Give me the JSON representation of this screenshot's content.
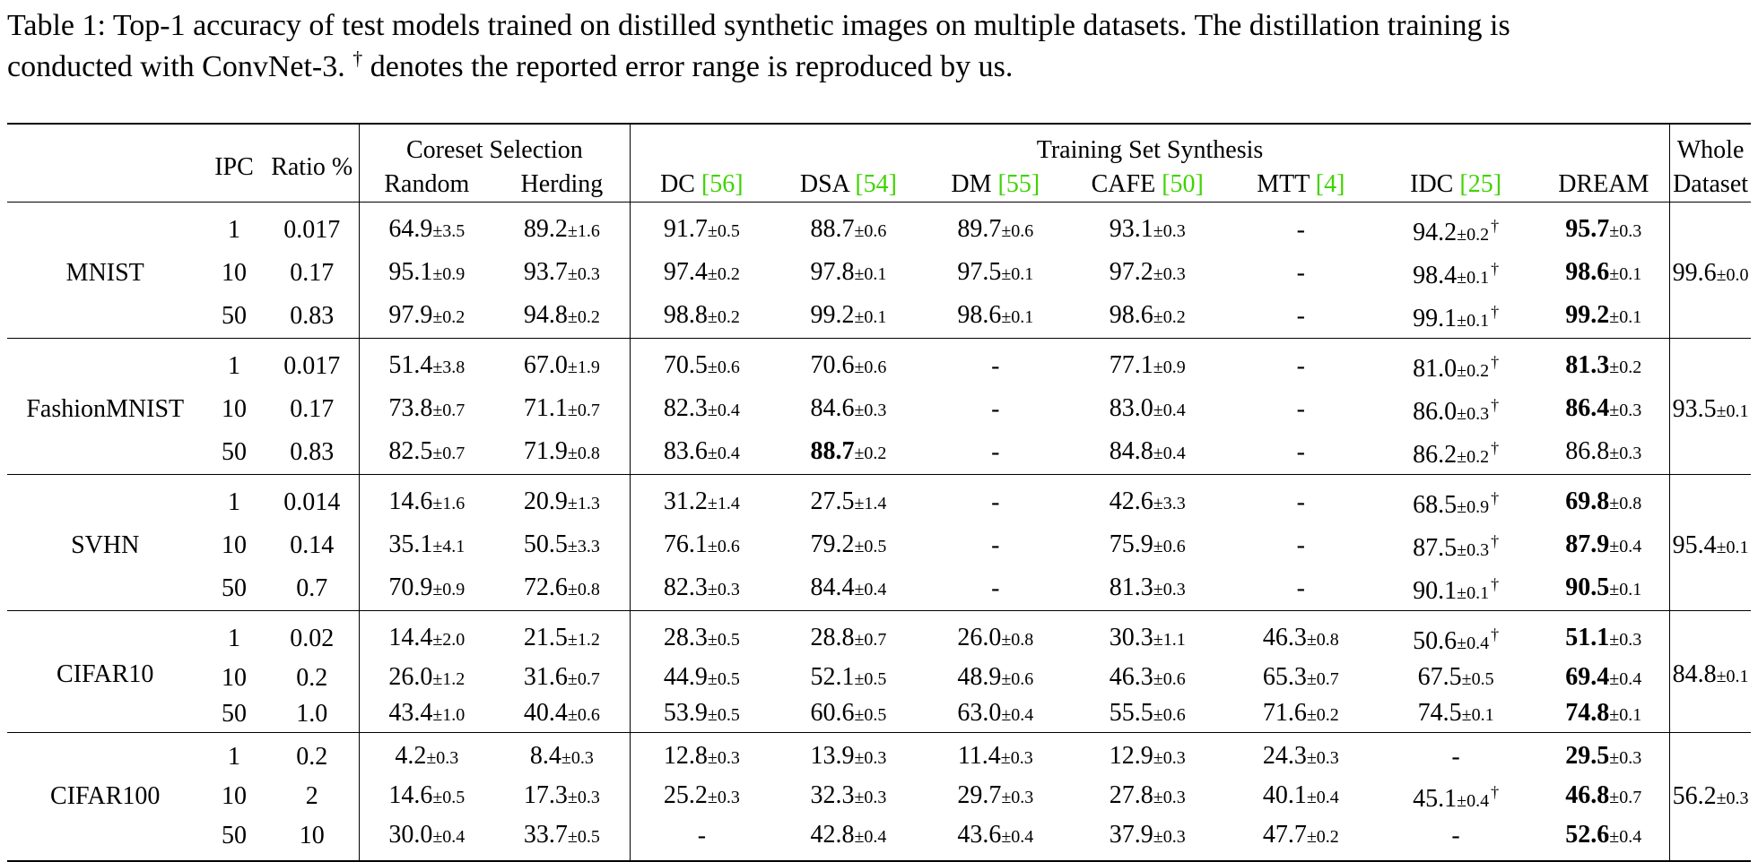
{
  "caption": {
    "line1": "Table 1: Top-1 accuracy of test models trained on distilled synthetic images on multiple datasets. The distillation training is",
    "line2_a": "conducted with ConvNet-3. ",
    "dagger": "†",
    "line2_b": " denotes the reported error range is reproduced by us."
  },
  "header": {
    "ipc": "IPC",
    "ratio": "Ratio %",
    "coreset_group": "Coreset Selection",
    "synthesis_group": "Training Set Synthesis",
    "whole_line1": "Whole",
    "whole_line2": "Dataset",
    "random": "Random",
    "herding": "Herding",
    "dc": "DC ",
    "dc_ref": "[56]",
    "dsa": "DSA ",
    "dsa_ref": "[54]",
    "dm": "DM ",
    "dm_ref": "[55]",
    "cafe": "CAFE ",
    "cafe_ref": "[50]",
    "mtt": "MTT ",
    "mtt_ref": "[4]",
    "idc": "IDC ",
    "idc_ref": "[25]",
    "dream": "DREAM"
  },
  "datasets": [
    {
      "name": "MNIST",
      "whole": [
        "99.6",
        "±0.0"
      ],
      "rows": [
        {
          "ipc": "1",
          "ratio": "0.017",
          "cells": [
            [
              "64.9",
              "±3.5",
              0,
              0
            ],
            [
              "89.2",
              "±1.6",
              0,
              0
            ],
            [
              "91.7",
              "±0.5",
              0,
              0
            ],
            [
              "88.7",
              "±0.6",
              0,
              0
            ],
            [
              "89.7",
              "±0.6",
              0,
              0
            ],
            [
              "93.1",
              "±0.3",
              0,
              0
            ],
            [
              "-",
              "",
              0,
              0
            ],
            [
              "94.2",
              "±0.2",
              0,
              1
            ],
            [
              "95.7",
              "±0.3",
              1,
              0
            ]
          ]
        },
        {
          "ipc": "10",
          "ratio": "0.17",
          "cells": [
            [
              "95.1",
              "±0.9",
              0,
              0
            ],
            [
              "93.7",
              "±0.3",
              0,
              0
            ],
            [
              "97.4",
              "±0.2",
              0,
              0
            ],
            [
              "97.8",
              "±0.1",
              0,
              0
            ],
            [
              "97.5",
              "±0.1",
              0,
              0
            ],
            [
              "97.2",
              "±0.3",
              0,
              0
            ],
            [
              "-",
              "",
              0,
              0
            ],
            [
              "98.4",
              "±0.1",
              0,
              1
            ],
            [
              "98.6",
              "±0.1",
              1,
              0
            ]
          ]
        },
        {
          "ipc": "50",
          "ratio": "0.83",
          "cells": [
            [
              "97.9",
              "±0.2",
              0,
              0
            ],
            [
              "94.8",
              "±0.2",
              0,
              0
            ],
            [
              "98.8",
              "±0.2",
              0,
              0
            ],
            [
              "99.2",
              "±0.1",
              0,
              0
            ],
            [
              "98.6",
              "±0.1",
              0,
              0
            ],
            [
              "98.6",
              "±0.2",
              0,
              0
            ],
            [
              "-",
              "",
              0,
              0
            ],
            [
              "99.1",
              "±0.1",
              0,
              1
            ],
            [
              "99.2",
              "±0.1",
              1,
              0
            ]
          ]
        }
      ]
    },
    {
      "name": "FashionMNIST",
      "whole": [
        "93.5",
        "±0.1"
      ],
      "rows": [
        {
          "ipc": "1",
          "ratio": "0.017",
          "cells": [
            [
              "51.4",
              "±3.8",
              0,
              0
            ],
            [
              "67.0",
              "±1.9",
              0,
              0
            ],
            [
              "70.5",
              "±0.6",
              0,
              0
            ],
            [
              "70.6",
              "±0.6",
              0,
              0
            ],
            [
              "-",
              "",
              0,
              0
            ],
            [
              "77.1",
              "±0.9",
              0,
              0
            ],
            [
              "-",
              "",
              0,
              0
            ],
            [
              "81.0",
              "±0.2",
              0,
              1
            ],
            [
              "81.3",
              "±0.2",
              1,
              0
            ]
          ]
        },
        {
          "ipc": "10",
          "ratio": "0.17",
          "cells": [
            [
              "73.8",
              "±0.7",
              0,
              0
            ],
            [
              "71.1",
              "±0.7",
              0,
              0
            ],
            [
              "82.3",
              "±0.4",
              0,
              0
            ],
            [
              "84.6",
              "±0.3",
              0,
              0
            ],
            [
              "-",
              "",
              0,
              0
            ],
            [
              "83.0",
              "±0.4",
              0,
              0
            ],
            [
              "-",
              "",
              0,
              0
            ],
            [
              "86.0",
              "±0.3",
              0,
              1
            ],
            [
              "86.4",
              "±0.3",
              1,
              0
            ]
          ]
        },
        {
          "ipc": "50",
          "ratio": "0.83",
          "cells": [
            [
              "82.5",
              "±0.7",
              0,
              0
            ],
            [
              "71.9",
              "±0.8",
              0,
              0
            ],
            [
              "83.6",
              "±0.4",
              0,
              0
            ],
            [
              "88.7",
              "±0.2",
              1,
              0
            ],
            [
              "-",
              "",
              0,
              0
            ],
            [
              "84.8",
              "±0.4",
              0,
              0
            ],
            [
              "-",
              "",
              0,
              0
            ],
            [
              "86.2",
              "±0.2",
              0,
              1
            ],
            [
              "86.8",
              "±0.3",
              0,
              0
            ]
          ]
        }
      ]
    },
    {
      "name": "SVHN",
      "whole": [
        "95.4",
        "±0.1"
      ],
      "rows": [
        {
          "ipc": "1",
          "ratio": "0.014",
          "cells": [
            [
              "14.6",
              "±1.6",
              0,
              0
            ],
            [
              "20.9",
              "±1.3",
              0,
              0
            ],
            [
              "31.2",
              "±1.4",
              0,
              0
            ],
            [
              "27.5",
              "±1.4",
              0,
              0
            ],
            [
              "-",
              "",
              0,
              0
            ],
            [
              "42.6",
              "±3.3",
              0,
              0
            ],
            [
              "-",
              "",
              0,
              0
            ],
            [
              "68.5",
              "±0.9",
              0,
              1
            ],
            [
              "69.8",
              "±0.8",
              1,
              0
            ]
          ]
        },
        {
          "ipc": "10",
          "ratio": "0.14",
          "cells": [
            [
              "35.1",
              "±4.1",
              0,
              0
            ],
            [
              "50.5",
              "±3.3",
              0,
              0
            ],
            [
              "76.1",
              "±0.6",
              0,
              0
            ],
            [
              "79.2",
              "±0.5",
              0,
              0
            ],
            [
              "-",
              "",
              0,
              0
            ],
            [
              "75.9",
              "±0.6",
              0,
              0
            ],
            [
              "-",
              "",
              0,
              0
            ],
            [
              "87.5",
              "±0.3",
              0,
              1
            ],
            [
              "87.9",
              "±0.4",
              1,
              0
            ]
          ]
        },
        {
          "ipc": "50",
          "ratio": "0.7",
          "cells": [
            [
              "70.9",
              "±0.9",
              0,
              0
            ],
            [
              "72.6",
              "±0.8",
              0,
              0
            ],
            [
              "82.3",
              "±0.3",
              0,
              0
            ],
            [
              "84.4",
              "±0.4",
              0,
              0
            ],
            [
              "-",
              "",
              0,
              0
            ],
            [
              "81.3",
              "±0.3",
              0,
              0
            ],
            [
              "-",
              "",
              0,
              0
            ],
            [
              "90.1",
              "±0.1",
              0,
              1
            ],
            [
              "90.5",
              "±0.1",
              1,
              0
            ]
          ]
        }
      ]
    },
    {
      "name": "CIFAR10",
      "whole": [
        "84.8",
        "±0.1"
      ],
      "rows": [
        {
          "ipc": "1",
          "ratio": "0.02",
          "cells": [
            [
              "14.4",
              "±2.0",
              0,
              0
            ],
            [
              "21.5",
              "±1.2",
              0,
              0
            ],
            [
              "28.3",
              "±0.5",
              0,
              0
            ],
            [
              "28.8",
              "±0.7",
              0,
              0
            ],
            [
              "26.0",
              "±0.8",
              0,
              0
            ],
            [
              "30.3",
              "±1.1",
              0,
              0
            ],
            [
              "46.3",
              "±0.8",
              0,
              0
            ],
            [
              "50.6",
              "±0.4",
              0,
              1
            ],
            [
              "51.1",
              "±0.3",
              1,
              0
            ]
          ]
        },
        {
          "ipc": "10",
          "ratio": "0.2",
          "cells": [
            [
              "26.0",
              "±1.2",
              0,
              0
            ],
            [
              "31.6",
              "±0.7",
              0,
              0
            ],
            [
              "44.9",
              "±0.5",
              0,
              0
            ],
            [
              "52.1",
              "±0.5",
              0,
              0
            ],
            [
              "48.9",
              "±0.6",
              0,
              0
            ],
            [
              "46.3",
              "±0.6",
              0,
              0
            ],
            [
              "65.3",
              "±0.7",
              0,
              0
            ],
            [
              "67.5",
              "±0.5",
              0,
              0
            ],
            [
              "69.4",
              "±0.4",
              1,
              0
            ]
          ]
        },
        {
          "ipc": "50",
          "ratio": "1.0",
          "cells": [
            [
              "43.4",
              "±1.0",
              0,
              0
            ],
            [
              "40.4",
              "±0.6",
              0,
              0
            ],
            [
              "53.9",
              "±0.5",
              0,
              0
            ],
            [
              "60.6",
              "±0.5",
              0,
              0
            ],
            [
              "63.0",
              "±0.4",
              0,
              0
            ],
            [
              "55.5",
              "±0.6",
              0,
              0
            ],
            [
              "71.6",
              "±0.2",
              0,
              0
            ],
            [
              "74.5",
              "±0.1",
              0,
              0
            ],
            [
              "74.8",
              "±0.1",
              1,
              0
            ]
          ]
        }
      ]
    },
    {
      "name": "CIFAR100",
      "whole": [
        "56.2",
        "±0.3"
      ],
      "rows": [
        {
          "ipc": "1",
          "ratio": "0.2",
          "cells": [
            [
              "4.2",
              "±0.3",
              0,
              0
            ],
            [
              "8.4",
              "±0.3",
              0,
              0
            ],
            [
              "12.8",
              "±0.3",
              0,
              0
            ],
            [
              "13.9",
              "±0.3",
              0,
              0
            ],
            [
              "11.4",
              "±0.3",
              0,
              0
            ],
            [
              "12.9",
              "±0.3",
              0,
              0
            ],
            [
              "24.3",
              "±0.3",
              0,
              0
            ],
            [
              "-",
              "",
              0,
              0
            ],
            [
              "29.5",
              "±0.3",
              1,
              0
            ]
          ]
        },
        {
          "ipc": "10",
          "ratio": "2",
          "cells": [
            [
              "14.6",
              "±0.5",
              0,
              0
            ],
            [
              "17.3",
              "±0.3",
              0,
              0
            ],
            [
              "25.2",
              "±0.3",
              0,
              0
            ],
            [
              "32.3",
              "±0.3",
              0,
              0
            ],
            [
              "29.7",
              "±0.3",
              0,
              0
            ],
            [
              "27.8",
              "±0.3",
              0,
              0
            ],
            [
              "40.1",
              "±0.4",
              0,
              0
            ],
            [
              "45.1",
              "±0.4",
              0,
              1
            ],
            [
              "46.8",
              "±0.7",
              1,
              0
            ]
          ]
        },
        {
          "ipc": "50",
          "ratio": "10",
          "cells": [
            [
              "30.0",
              "±0.4",
              0,
              0
            ],
            [
              "33.7",
              "±0.5",
              0,
              0
            ],
            [
              "-",
              "",
              0,
              0
            ],
            [
              "42.8",
              "±0.4",
              0,
              0
            ],
            [
              "43.6",
              "±0.4",
              0,
              0
            ],
            [
              "37.9",
              "±0.3",
              0,
              0
            ],
            [
              "47.7",
              "±0.2",
              0,
              0
            ],
            [
              "-",
              "",
              0,
              0
            ],
            [
              "52.6",
              "±0.4",
              1,
              0
            ]
          ]
        }
      ]
    }
  ]
}
